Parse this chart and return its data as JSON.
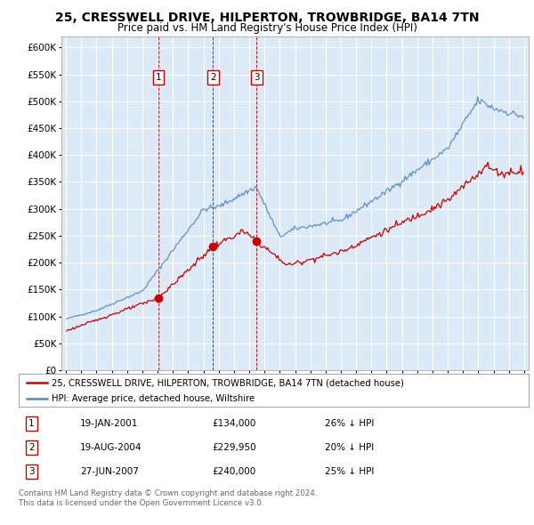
{
  "title": "25, CRESSWELL DRIVE, HILPERTON, TROWBRIDGE, BA14 7TN",
  "subtitle": "Price paid vs. HM Land Registry's House Price Index (HPI)",
  "title_fontsize": 10,
  "subtitle_fontsize": 8.5,
  "background_color": "#ffffff",
  "plot_bg_color": "#dce9f7",
  "grid_color": "#ffffff",
  "legend_label_red": "25, CRESSWELL DRIVE, HILPERTON, TROWBRIDGE, BA14 7TN (detached house)",
  "legend_label_blue": "HPI: Average price, detached house, Wiltshire",
  "footer1": "Contains HM Land Registry data © Crown copyright and database right 2024.",
  "footer2": "This data is licensed under the Open Government Licence v3.0.",
  "transactions": [
    {
      "num": 1,
      "date": "19-JAN-2001",
      "price": 134000,
      "pct": "26% ↓ HPI",
      "x": 2001.05
    },
    {
      "num": 2,
      "date": "19-AUG-2004",
      "price": 229950,
      "pct": "20% ↓ HPI",
      "x": 2004.63
    },
    {
      "num": 3,
      "date": "27-JUN-2007",
      "price": 240000,
      "pct": "25% ↓ HPI",
      "x": 2007.49
    }
  ],
  "ylim": [
    0,
    620000
  ],
  "yticks": [
    0,
    50000,
    100000,
    150000,
    200000,
    250000,
    300000,
    350000,
    400000,
    450000,
    500000,
    550000,
    600000
  ],
  "red_color": "#cc0000",
  "blue_color": "#5588bb",
  "vline_color": "#cc0000"
}
